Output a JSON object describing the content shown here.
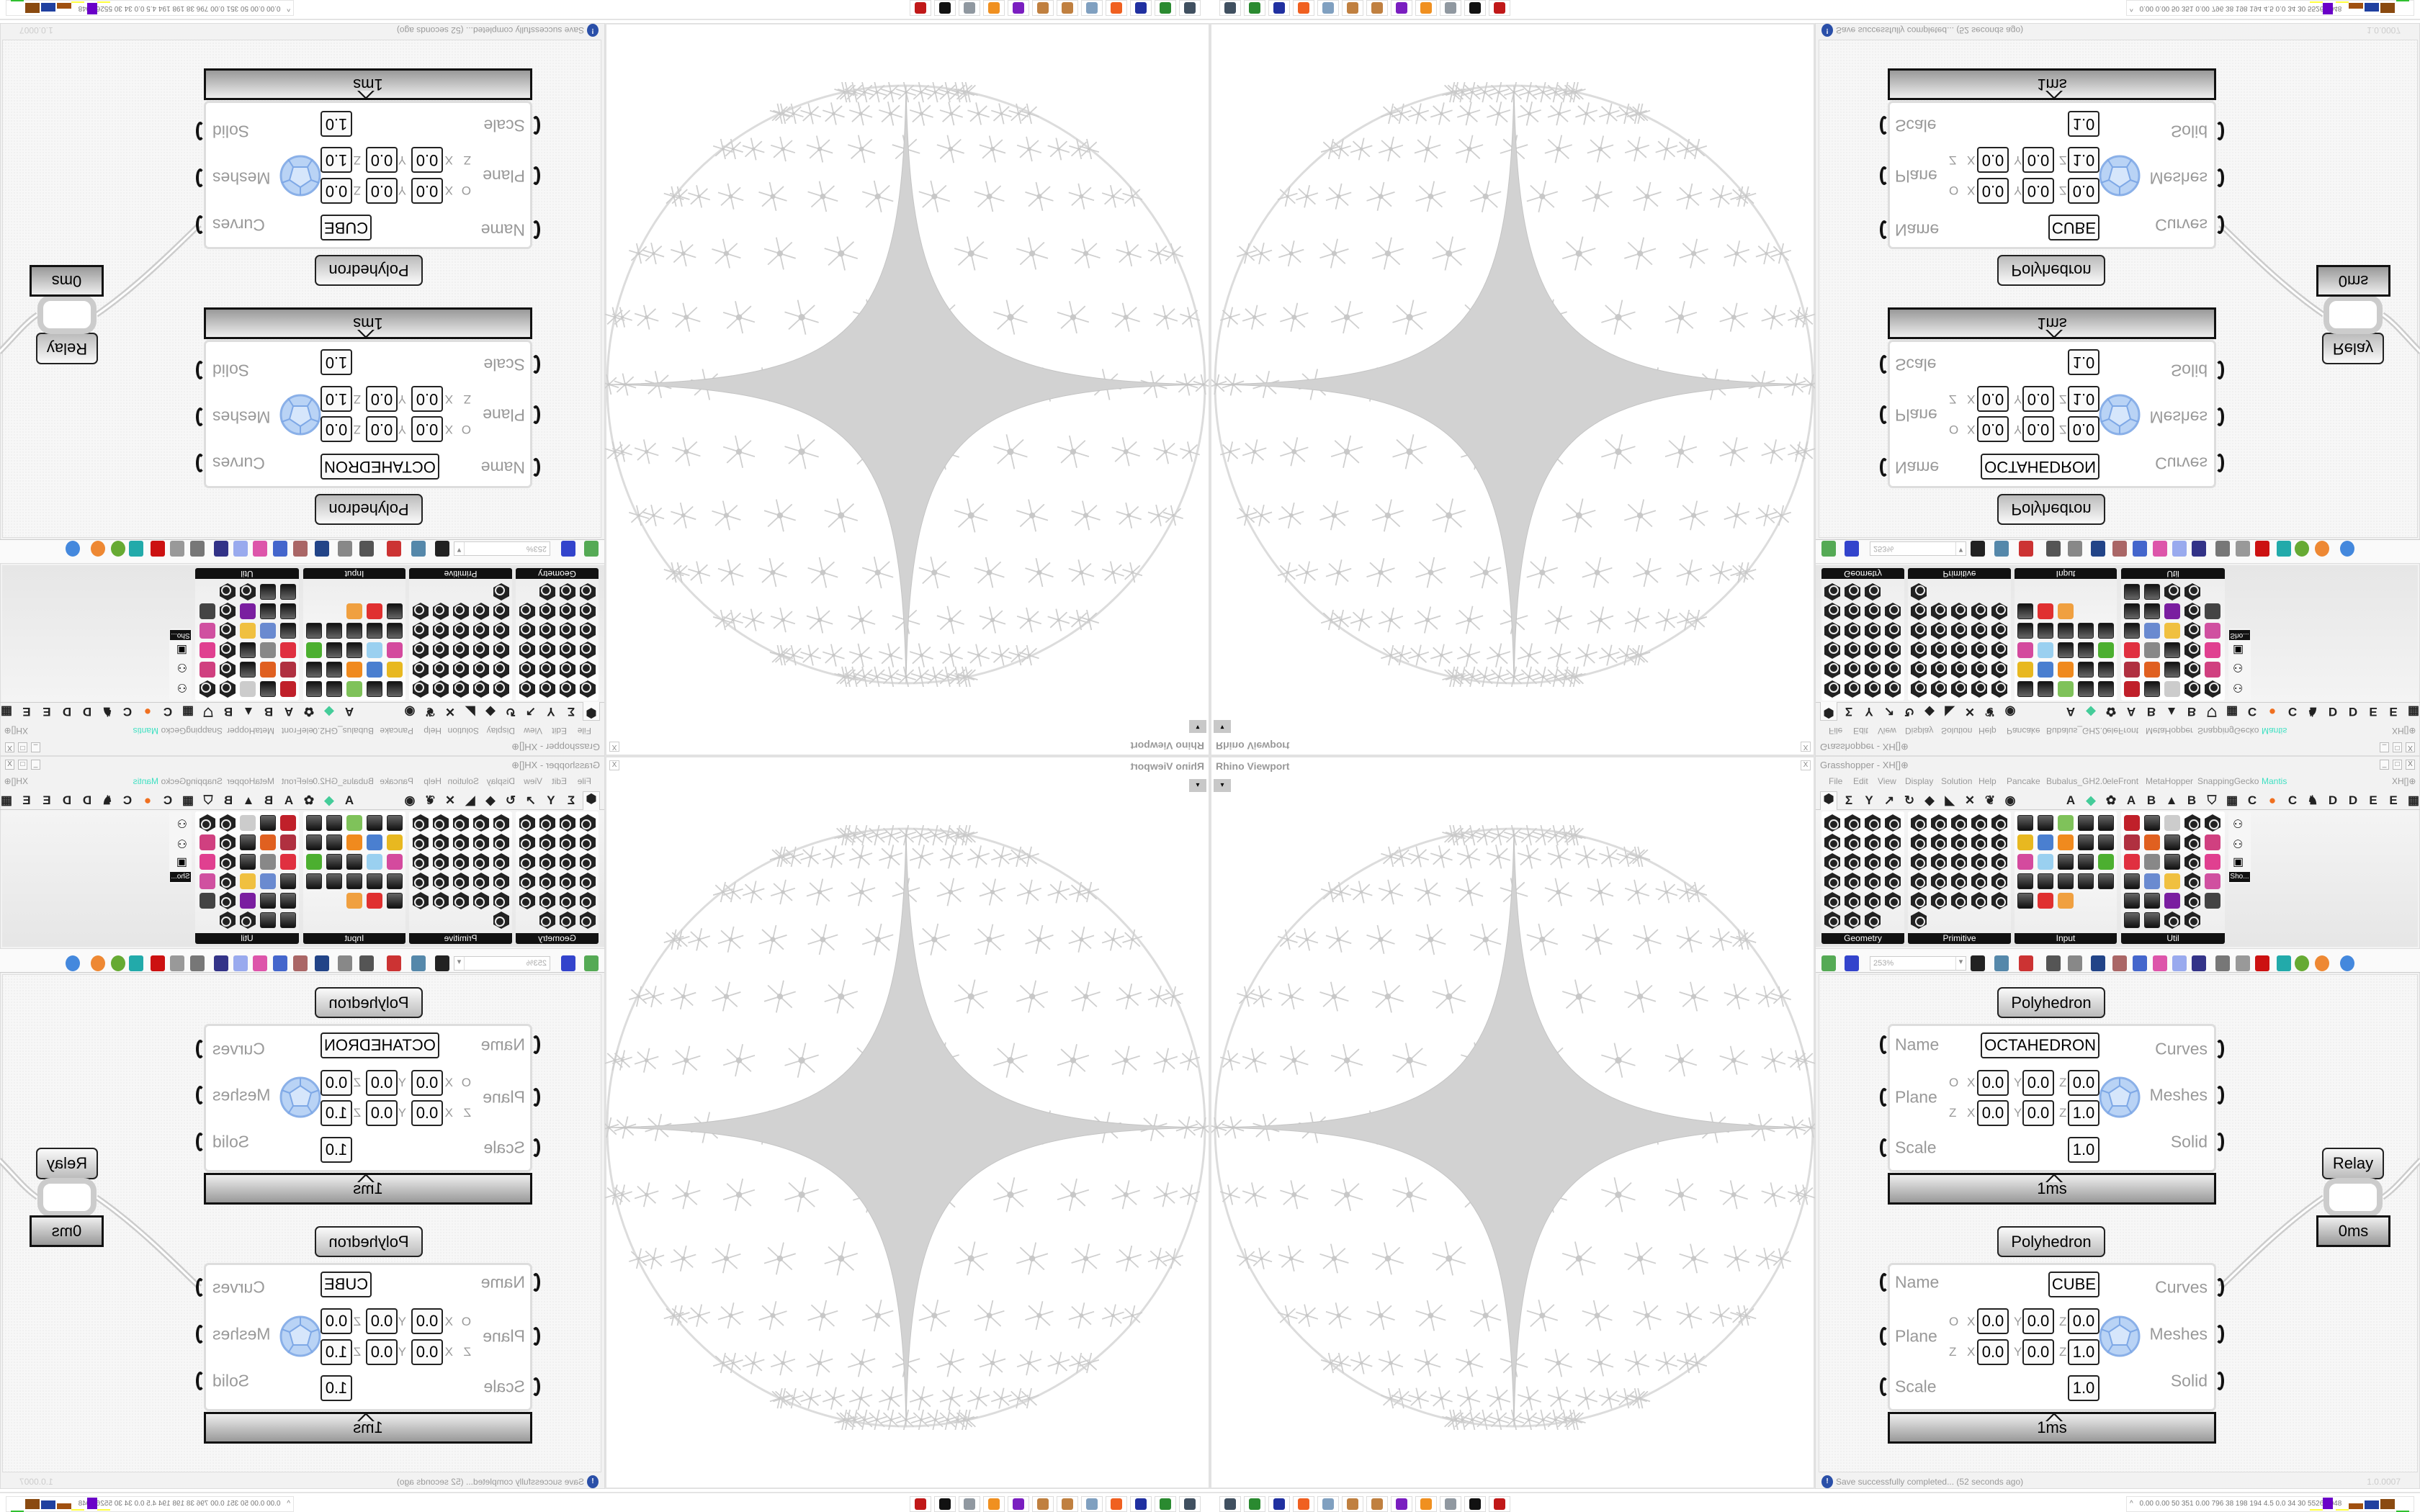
{
  "viewport": {
    "title": "Rhino Viewport",
    "close_label": "X",
    "view_menu_label": "▾"
  },
  "grasshopper": {
    "title": "Grasshopper - XH[]⊕",
    "window_buttons": [
      "_",
      "□",
      "X"
    ],
    "menu": [
      "File",
      "Edit",
      "View",
      "Display",
      "Solution",
      "Help",
      "Pancake",
      "Bubalus_GH2.0",
      "eleFront",
      "MetaHopper",
      "SnappingGecko",
      "Mantis"
    ],
    "menu_accent": "#3ee0c2",
    "document_name": "XH[]⊕",
    "tabs_main": [
      "⬢",
      "Σ",
      "Y",
      "↗",
      "↻",
      "◆",
      "◣",
      "✕",
      "❦",
      "◉"
    ],
    "tabs_plugins": [
      "A",
      "◆",
      "✿",
      "A",
      "B",
      "▲",
      "B",
      "⛉",
      "▦",
      "C",
      "●",
      "C",
      "♞",
      "D",
      "D",
      "E",
      "E",
      "▦"
    ],
    "panels": [
      {
        "label": "Geometry",
        "icons": [
          "hex",
          "hex",
          "hex",
          "hex",
          "hex",
          "hex",
          "hex",
          "hex",
          "hex",
          "hex",
          "hex",
          "hex",
          "hex",
          "hex",
          "hex",
          "hex",
          "hex",
          "hex",
          "hex",
          "hex",
          "hex",
          "hex",
          "hex"
        ]
      },
      {
        "label": "Primitive",
        "icons": [
          "hex",
          "hex",
          "hex",
          "hex",
          "hex",
          "hex",
          "hex",
          "hex",
          "hex",
          "hex",
          "hex",
          "hex",
          "hex",
          "hex",
          "hex",
          "hex",
          "hex",
          "hex",
          "hex",
          "hex",
          "hex",
          "hex",
          "hex",
          "hex",
          "hex",
          "hex"
        ]
      },
      {
        "label": "Input",
        "icons": [
          "sq",
          "sq",
          "#7fc25a",
          "sq",
          "sq",
          "#e8b820",
          "#4a7fd0",
          "#f08a1e",
          "sq",
          "sq",
          "#d44a9e",
          "#9ad0f0",
          "sq",
          "sq",
          "#4caf30",
          "sq",
          "sq",
          "sq",
          "sq",
          "sq",
          "sq",
          "#e03030",
          "#f0a040"
        ]
      },
      {
        "label": "Util",
        "icons": [
          "#c0202a",
          "sq",
          "#cccccc",
          "hex",
          "hex",
          "#b03040",
          "#e06020",
          "sq",
          "hex",
          "#d04080",
          "#e03040",
          "#888888",
          "sq",
          "hex",
          "#e04090",
          "sq",
          "#6a8ad0",
          "#f0c040",
          "hex",
          "#d050a0",
          "sq",
          "sq",
          "#7a1ea0",
          "hex",
          "#444444",
          "sq",
          "sq",
          "hex",
          "hex"
        ]
      }
    ],
    "show_panel_label": "Sho...",
    "toolbar": {
      "zoom": "253%",
      "icons": [
        "new-file",
        "save",
        "zoom-extents",
        "preview-eye",
        "sketch",
        "wires",
        "gha-export",
        "gha",
        "image",
        "search",
        "box",
        "bulb",
        "twist",
        "gray-shader",
        "wire-shader",
        "red-shader",
        "teal-shader",
        "green-shader",
        "orange-shader",
        "blue-sphere"
      ]
    },
    "plane_labels": {
      "origin": "O",
      "zaxis": "Z",
      "x": "X",
      "y": "Y",
      "z": "Z"
    },
    "components": [
      {
        "title": "Polyhedron",
        "inputs": [
          "Name",
          "Plane",
          "Scale"
        ],
        "outputs": [
          "Curves",
          "Meshes",
          "Solid"
        ],
        "name_value": "OCTAHEDRON",
        "origin": [
          "0.0",
          "0.0",
          "0.0"
        ],
        "zaxis": [
          "0.0",
          "0.0",
          "1.0"
        ],
        "scale": "1.0",
        "time": "1ms"
      },
      {
        "title": "Polyhedron",
        "inputs": [
          "Name",
          "Plane",
          "Scale"
        ],
        "outputs": [
          "Curves",
          "Meshes",
          "Solid"
        ],
        "name_value": "CUBE",
        "origin": [
          "0.0",
          "0.0",
          "0.0"
        ],
        "zaxis": [
          "0.0",
          "0.0",
          "1.0"
        ],
        "scale": "1.0",
        "time": "1ms"
      }
    ],
    "relay": {
      "label": "Relay",
      "time": "0ms"
    },
    "status": {
      "message": "Save successfully completed... (52 seconds ago)",
      "version": "1.0.0007",
      "icon": "info-icon"
    }
  },
  "taskbar": {
    "apps": [
      "remote-desktop",
      "terminal",
      "floppy-64",
      "firefox",
      "calculator",
      "paint",
      "paint-alt",
      "privacy-app",
      "blender",
      "scroll",
      "inkscape",
      "rhino"
    ],
    "app_colors": [
      "#405060",
      "#2a8a30",
      "#2030a0",
      "#f06020",
      "#80a0c0",
      "#c08040",
      "#c08040",
      "#7a1ec0",
      "#f09020",
      "#9098a0",
      "#111111",
      "#c01818"
    ],
    "stats_toggle": "^",
    "stats": "0.00 0.00  50   351  0.00  796   38   198  194   4.5   0.0   34    30  5526 7048",
    "graph_colors": [
      "#ffff40",
      "#6a00c8",
      "#a05010",
      "#2040a0",
      "#8a4a10",
      "#30c030"
    ]
  }
}
